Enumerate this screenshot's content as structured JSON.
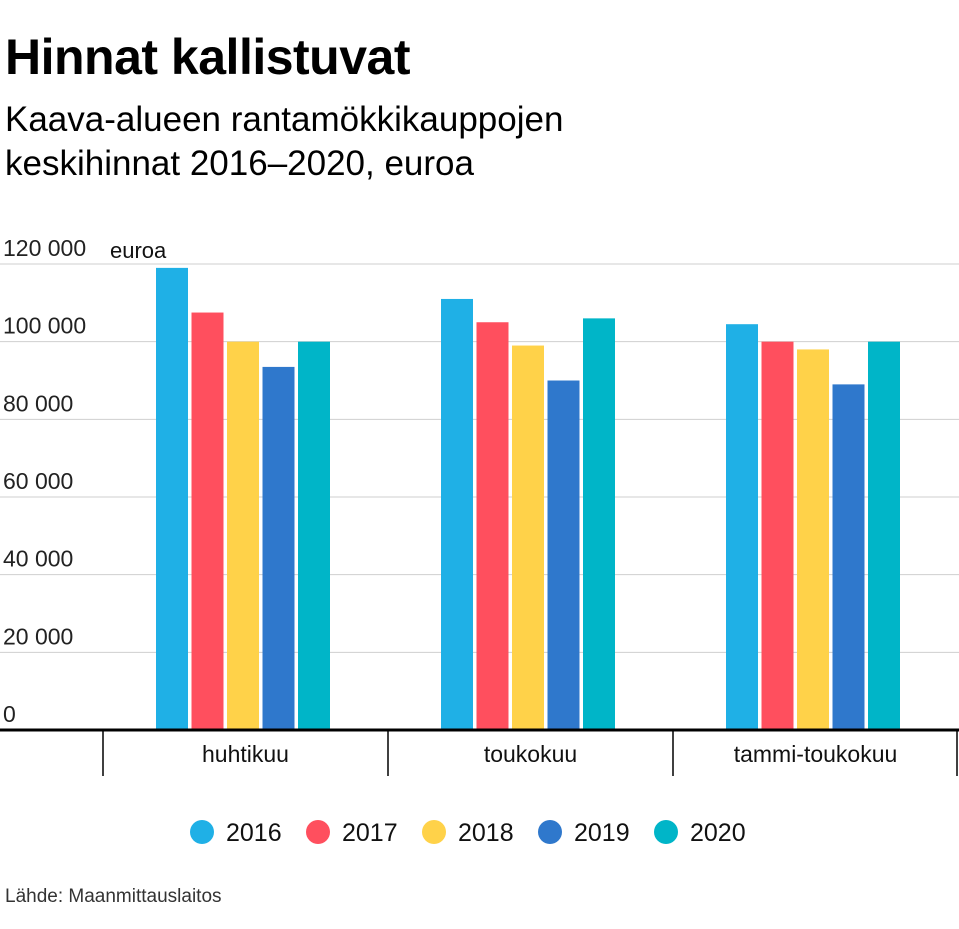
{
  "header": {
    "title": "Hinnat kallistuvat",
    "subtitle": "Kaava-alueen rantamökkikauppojen keskihinnat 2016–2020, euroa"
  },
  "footer": {
    "source": "Lähde: Maanmittauslaitos"
  },
  "chart_data": {
    "type": "bar",
    "title": "Hinnat kallistuvat",
    "subtitle": "Kaava-alueen rantamökkikauppojen keskihinnat 2016–2020, euroa",
    "ylabel": "euroa",
    "xlabel": "",
    "ylim": [
      0,
      120000
    ],
    "y_ticks": [
      0,
      20000,
      40000,
      60000,
      80000,
      100000,
      120000
    ],
    "y_tick_labels": [
      "0",
      "20 000",
      "40 000",
      "60 000",
      "80 000",
      "100 000",
      "120 000"
    ],
    "grid": true,
    "legend_position": "bottom",
    "categories": [
      "huhtikuu",
      "toukokuu",
      "tammi-toukokuu"
    ],
    "series": [
      {
        "name": "2016",
        "color": "#1fb0e6",
        "values": [
          119000,
          111000,
          104500
        ]
      },
      {
        "name": "2017",
        "color": "#ff4f5e",
        "values": [
          107500,
          105000,
          100000
        ]
      },
      {
        "name": "2018",
        "color": "#ffd249",
        "values": [
          100000,
          99000,
          98000
        ]
      },
      {
        "name": "2019",
        "color": "#2f78cc",
        "values": [
          93500,
          90000,
          89000
        ]
      },
      {
        "name": "2020",
        "color": "#00b5c8",
        "values": [
          100000,
          106000,
          100000
        ]
      }
    ]
  }
}
